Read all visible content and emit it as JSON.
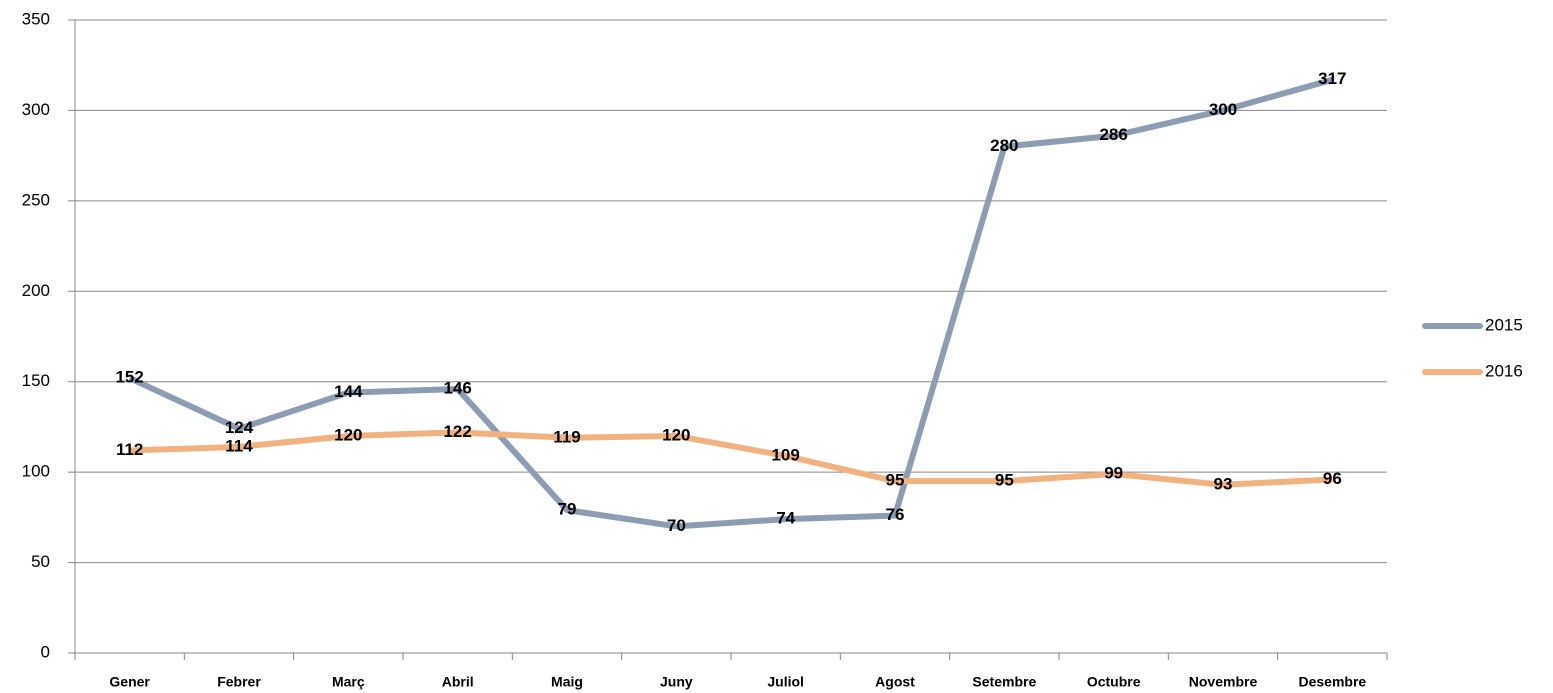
{
  "chart_data": {
    "type": "line",
    "categories": [
      "Gener",
      "Febrer",
      "Març",
      "Abril",
      "Maig",
      "Juny",
      "Juliol",
      "Agost",
      "Setembre",
      "Octubre",
      "Novembre",
      "Desembre"
    ],
    "series": [
      {
        "name": "2015",
        "color": "#8c9db3",
        "values": [
          152,
          124,
          144,
          146,
          79,
          70,
          74,
          76,
          280,
          286,
          300,
          317
        ]
      },
      {
        "name": "2016",
        "color": "#f2b27f",
        "values": [
          112,
          114,
          120,
          122,
          119,
          120,
          109,
          95,
          95,
          99,
          93,
          96
        ]
      }
    ],
    "ylim": [
      0,
      350
    ],
    "yticks": [
      0,
      50,
      100,
      150,
      200,
      250,
      300,
      350
    ],
    "grid": true,
    "legend": "right"
  }
}
